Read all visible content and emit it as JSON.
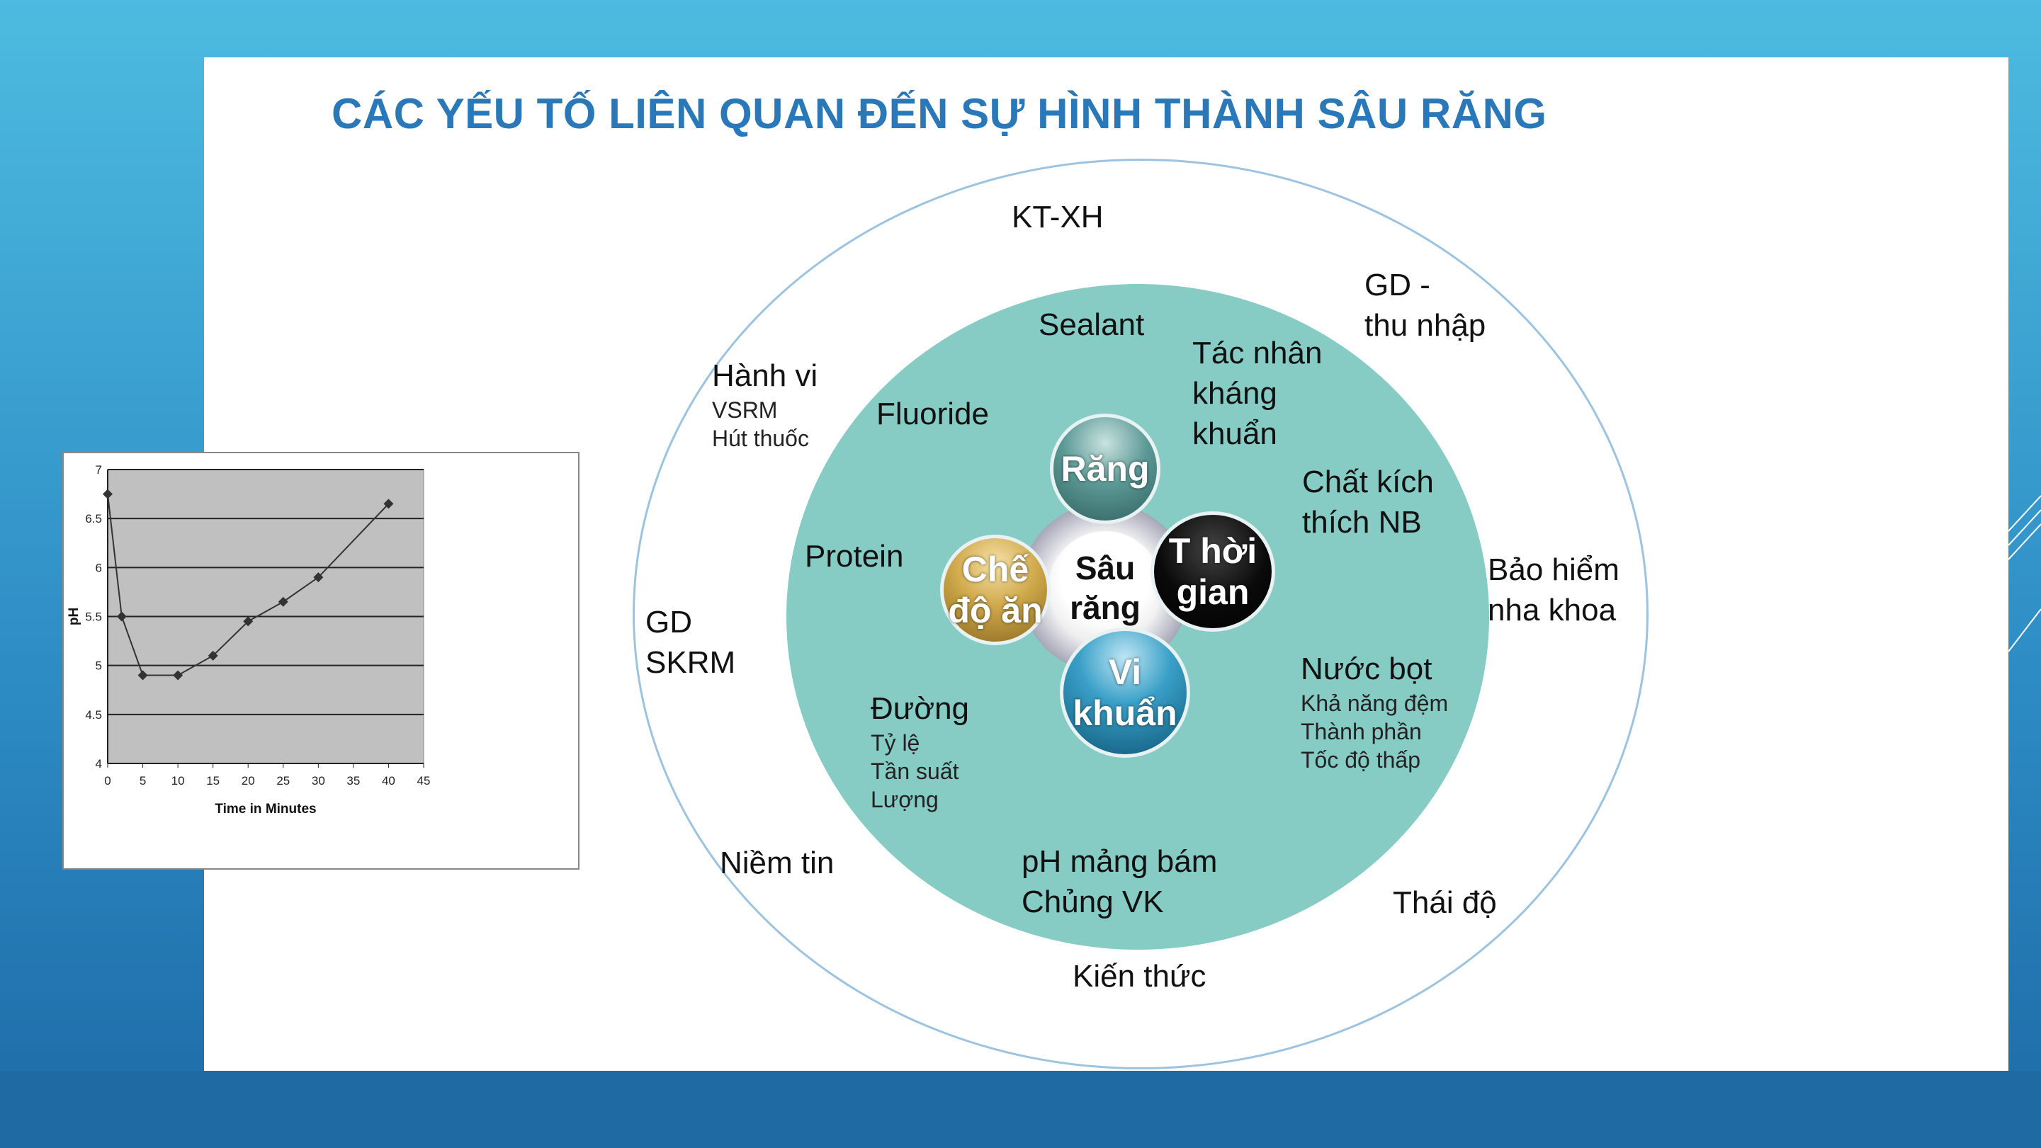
{
  "title": "CÁC YẾU TỐ LIÊN QUAN ĐẾN SỰ HÌNH THÀNH SÂU RĂNG",
  "diagram": {
    "center": [
      "Sâu",
      "răng"
    ],
    "core_factors": [
      {
        "label": [
          "Răng"
        ],
        "color": "#3d7f7c"
      },
      {
        "label": [
          "Chế",
          "độ ăn"
        ],
        "color": "#c9a23f"
      },
      {
        "label": [
          "T hời",
          "gian"
        ],
        "color": "#0a0a0a"
      },
      {
        "label": [
          "Vi",
          "khuẩn"
        ],
        "color": "#1a7fa8"
      }
    ],
    "inner_factors": {
      "sealant": "Sealant",
      "tac_nhan": [
        "Tác nhân",
        "kháng",
        "khuẩn"
      ],
      "fluoride": "Fluoride",
      "chat_kich": [
        "Chất kích",
        "thích NB"
      ],
      "protein": "Protein",
      "nuoc_bot": {
        "label": "Nước bọt",
        "items": [
          "Khả năng đệm",
          "Thành phần",
          "Tốc độ thấp"
        ]
      },
      "duong": {
        "label": "Đường",
        "items": [
          "Tỷ lệ",
          "Tần suất",
          "Lượng"
        ]
      },
      "ph": [
        "pH mảng bám",
        "Chủng VK"
      ]
    },
    "outer_factors": {
      "ktxh": "KT-XH",
      "gd_thu_nhap": [
        "GD -",
        "thu nhập"
      ],
      "hanh_vi": {
        "label": "Hành vi",
        "items": [
          "VSRM",
          "Hút thuốc"
        ]
      },
      "bao_hiem": [
        "Bảo hiểm",
        "nha khoa"
      ],
      "gd_skrm": [
        "GD",
        "SKRM"
      ],
      "niem_tin": "Niềm tin",
      "thai_do": "Thái độ",
      "kien_thuc": "Kiến thức"
    },
    "colors": {
      "title": "#2a78b8",
      "inner_circle": "#86ccc5",
      "outer_ring": "#9cc3e0"
    }
  },
  "chart_data": {
    "type": "line",
    "x": [
      0,
      2,
      5,
      10,
      15,
      20,
      25,
      30,
      40
    ],
    "y": [
      6.75,
      5.5,
      4.9,
      4.9,
      5.1,
      5.45,
      5.65,
      5.9,
      6.65
    ],
    "xlabel": "Time in Minutes",
    "ylabel": "pH",
    "xlim": [
      0,
      45
    ],
    "ylim": [
      4,
      7
    ],
    "xticks": [
      "0",
      "5",
      "10",
      "15",
      "20",
      "25",
      "30",
      "35",
      "40",
      "45"
    ],
    "yticks": [
      "4",
      "4.5",
      "5",
      "5.5",
      "6",
      "6.5",
      "7"
    ],
    "grid": "horizontal",
    "marker": "diamond",
    "plot_background": "#c0c0c0"
  }
}
